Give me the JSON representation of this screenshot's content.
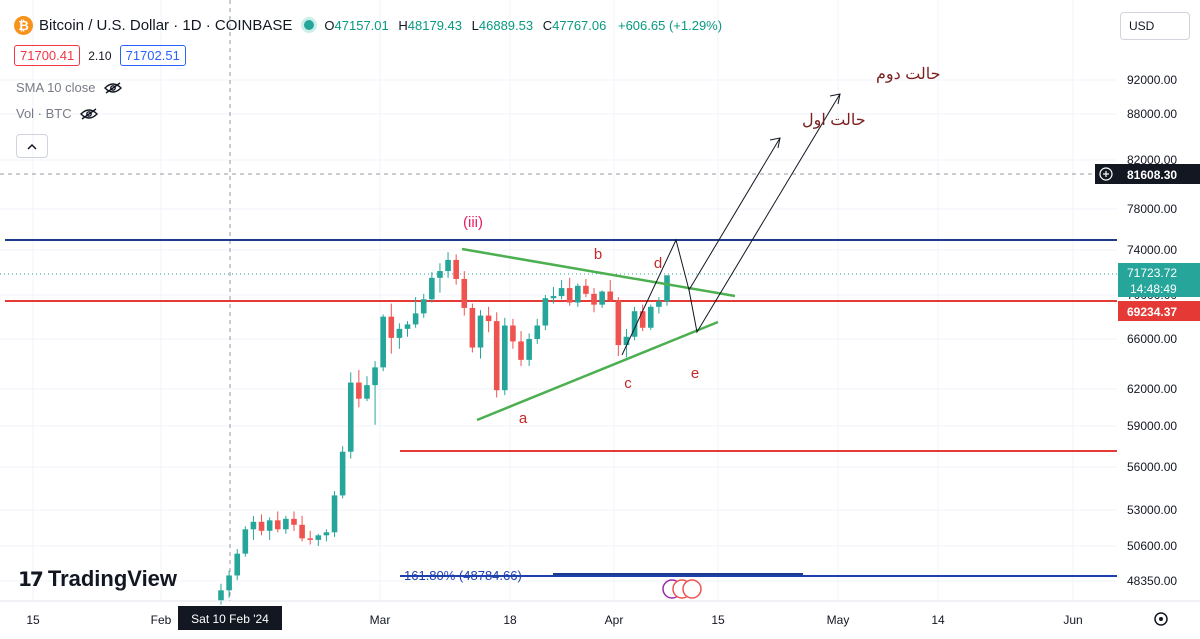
{
  "header": {
    "symbol": "Bitcoin / U.S. Dollar · 1D · COINBASE",
    "logo_glyph": "₿",
    "o_label": "O",
    "o_value": "47157.01",
    "h_label": "H",
    "h_value": "48179.43",
    "l_label": "L",
    "l_value": "46889.53",
    "c_label": "C",
    "c_value": "47767.06",
    "change": "+606.65 (+1.29%)"
  },
  "prices": {
    "sell": "71700.41",
    "spread": "2.10",
    "buy": "71702.51"
  },
  "indicators": {
    "sma": "SMA 10 close",
    "vol": "Vol · BTC"
  },
  "currency_button": "USD",
  "watermark": "TradingView",
  "chart_data": {
    "type": "candlestick",
    "symbol": "BTCUSD",
    "timeframe": "1D",
    "y_ticks": [
      "92000.00",
      "88000.00",
      "82000.00",
      "78000.00",
      "74000.00",
      "70000.00",
      "66000.00",
      "62000.00",
      "59000.00",
      "56000.00",
      "53000.00",
      "50600.00",
      "48350.00"
    ],
    "x_ticks": [
      "15",
      "Feb",
      "Mar",
      "18",
      "Apr",
      "15",
      "May",
      "14",
      "Jun"
    ],
    "x_highlight": "Sat 10 Feb '24",
    "price_labels": {
      "crosshair": "81608.30",
      "last": "71723.72",
      "countdown": "14:48:49",
      "level": "69234.37"
    },
    "horizontal_levels": [
      {
        "price": 74000,
        "color": "#1e3a8a"
      },
      {
        "price": 69234.37,
        "color": "#e53935"
      },
      {
        "price": 57000,
        "color": "#e53935"
      },
      {
        "price": 48784.66,
        "color": "#1e40af",
        "label": "161.80% (48784.66)"
      }
    ],
    "wave_labels": {
      "iii": "(iii)",
      "a": "a",
      "b": "b",
      "c": "c",
      "d": "d",
      "e": "e"
    },
    "scenario_labels": {
      "first": "حالت اول",
      "second": "حالت دوم"
    },
    "candles_approx": [
      [
        47157,
        48179,
        46890,
        47767
      ],
      [
        47767,
        49000,
        47300,
        48700
      ],
      [
        48700,
        50400,
        48400,
        50100
      ],
      [
        50100,
        51900,
        49900,
        51700
      ],
      [
        51700,
        52600,
        51000,
        52200
      ],
      [
        52200,
        52700,
        51300,
        51600
      ],
      [
        51600,
        52500,
        51000,
        52300
      ],
      [
        52300,
        52900,
        51500,
        51700
      ],
      [
        51700,
        52600,
        51400,
        52400
      ],
      [
        52400,
        52900,
        51600,
        52000
      ],
      [
        52000,
        52600,
        50900,
        51100
      ],
      [
        51100,
        51600,
        50700,
        51000
      ],
      [
        51000,
        51400,
        50600,
        51300
      ],
      [
        51300,
        51700,
        50900,
        51500
      ],
      [
        51500,
        54300,
        51200,
        54000
      ],
      [
        54000,
        57500,
        53800,
        57100
      ],
      [
        57100,
        63300,
        56600,
        62500
      ],
      [
        62500,
        63500,
        60500,
        61200
      ],
      [
        61200,
        63000,
        61000,
        62300
      ],
      [
        62300,
        64200,
        59100,
        63700
      ],
      [
        63700,
        68200,
        63400,
        68000
      ],
      [
        68000,
        69200,
        64800,
        66100
      ],
      [
        66100,
        67400,
        65200,
        66900
      ],
      [
        66900,
        67600,
        66200,
        67300
      ],
      [
        67300,
        69800,
        67000,
        68300
      ],
      [
        68300,
        70100,
        67900,
        69600
      ],
      [
        69600,
        72000,
        69300,
        71500
      ],
      [
        71500,
        72800,
        70200,
        72100
      ],
      [
        72100,
        73800,
        71500,
        73100
      ],
      [
        73100,
        73600,
        70900,
        71400
      ],
      [
        71400,
        72100,
        68100,
        68800
      ],
      [
        68800,
        69200,
        64900,
        65300
      ],
      [
        65300,
        68600,
        64400,
        68100
      ],
      [
        68100,
        68900,
        66600,
        67600
      ],
      [
        67600,
        68400,
        61300,
        61900
      ],
      [
        61900,
        67900,
        61500,
        67200
      ],
      [
        67200,
        67800,
        65200,
        65800
      ],
      [
        65800,
        66700,
        63800,
        64300
      ],
      [
        64300,
        66500,
        63800,
        66000
      ],
      [
        66000,
        67800,
        65600,
        67200
      ],
      [
        67200,
        70000,
        66800,
        69700
      ],
      [
        69700,
        70700,
        69200,
        69900
      ],
      [
        69900,
        71300,
        69600,
        70600
      ],
      [
        70600,
        71500,
        69000,
        69300
      ],
      [
        69300,
        71000,
        68900,
        70800
      ],
      [
        70800,
        71400,
        69800,
        70100
      ],
      [
        70100,
        70600,
        68400,
        69100
      ],
      [
        69100,
        70400,
        68800,
        70300
      ],
      [
        70300,
        71300,
        69400,
        69500
      ],
      [
        69500,
        69800,
        64600,
        65500
      ],
      [
        65500,
        66900,
        64500,
        66200
      ],
      [
        66200,
        68900,
        65900,
        68500
      ],
      [
        68500,
        69100,
        66700,
        67000
      ],
      [
        67000,
        69100,
        66800,
        68900
      ],
      [
        68900,
        69800,
        68300,
        69400
      ],
      [
        69400,
        71400,
        69000,
        71724
      ]
    ]
  }
}
